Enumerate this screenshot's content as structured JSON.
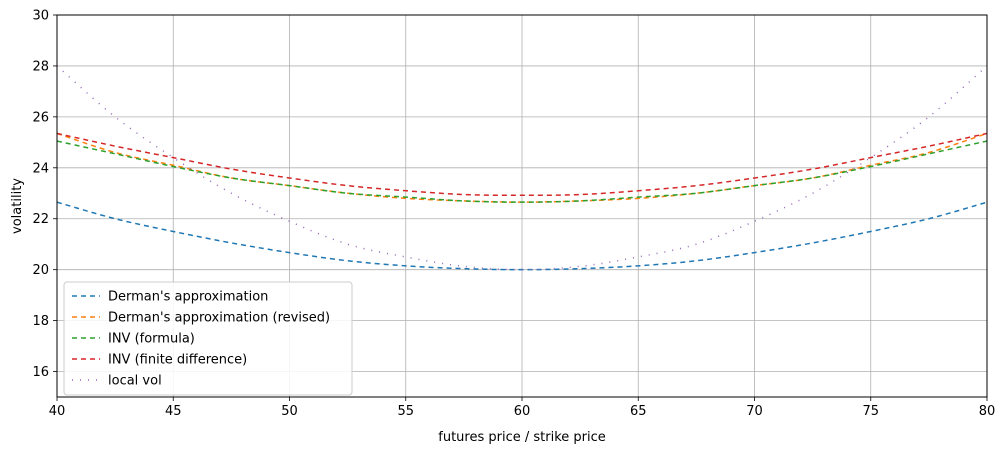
{
  "chart_data": {
    "type": "line",
    "xlabel": "futures price / strike price",
    "ylabel": "volatility",
    "xlim": [
      40,
      80
    ],
    "ylim": [
      15,
      30
    ],
    "xticks": [
      40,
      45,
      50,
      55,
      60,
      65,
      70,
      75,
      80
    ],
    "yticks": [
      16,
      18,
      20,
      22,
      24,
      26,
      28,
      30
    ],
    "grid": true,
    "legend_position": "lower-left",
    "x": [
      40,
      42.5,
      45,
      47.5,
      50,
      52.5,
      55,
      57.5,
      60,
      62.5,
      65,
      67.5,
      70,
      72.5,
      75,
      77.5,
      80
    ],
    "series": [
      {
        "name": "Derman's approximation",
        "color": "#1f77b4",
        "dash": "dashed",
        "values": [
          22.65,
          22.0,
          21.5,
          21.05,
          20.67,
          20.35,
          20.15,
          20.04,
          20.0,
          20.04,
          20.15,
          20.35,
          20.67,
          21.05,
          21.5,
          22.0,
          22.65
        ]
      },
      {
        "name": "Derman's approximation (revised)",
        "color": "#ff7f0e",
        "dash": "dashed",
        "values": [
          25.35,
          24.6,
          24.1,
          23.6,
          23.3,
          23.0,
          22.8,
          22.7,
          22.65,
          22.7,
          22.8,
          23.0,
          23.3,
          23.6,
          24.1,
          24.6,
          25.35
        ]
      },
      {
        "name": "INV (formula)",
        "color": "#2ca02c",
        "dash": "dashed",
        "values": [
          25.05,
          24.55,
          24.05,
          23.6,
          23.3,
          23.0,
          22.85,
          22.7,
          22.65,
          22.7,
          22.85,
          23.0,
          23.3,
          23.6,
          24.05,
          24.55,
          25.05
        ]
      },
      {
        "name": "INV (finite difference)",
        "color": "#d62728",
        "dash": "dashed",
        "values": [
          25.35,
          24.85,
          24.4,
          23.95,
          23.6,
          23.3,
          23.1,
          22.95,
          22.92,
          22.95,
          23.1,
          23.3,
          23.6,
          23.95,
          24.4,
          24.85,
          25.35
        ]
      },
      {
        "name": "local vol",
        "color": "#9467bd",
        "dash": "dashdot",
        "values": [
          28.0,
          26.0,
          24.4,
          23.0,
          21.9,
          21.0,
          20.5,
          20.13,
          20.0,
          20.13,
          20.5,
          21.0,
          21.9,
          23.0,
          24.4,
          26.0,
          28.0
        ]
      }
    ]
  }
}
